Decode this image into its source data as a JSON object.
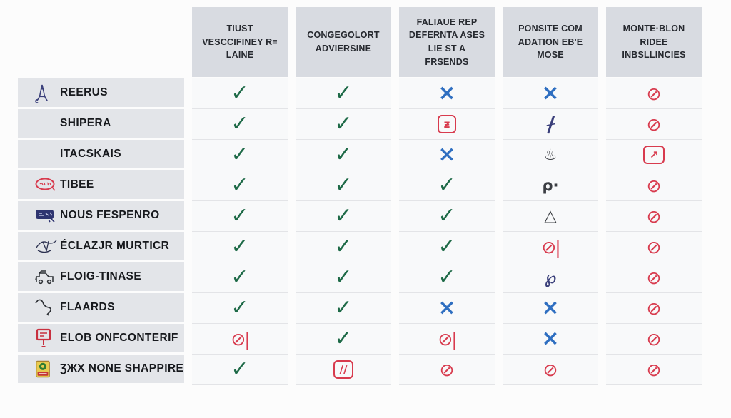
{
  "chart_data": {
    "type": "table",
    "title": "",
    "columns": [
      "TIUST VESCCIFINEY R≡ LAINE",
      "CONGEGOLORT ADVIERSINE",
      "FALIAUE REP DEFERNTA ASES LIE ST A FRSENDS",
      "PONSITE COM ADATION EB'E MOSE",
      "MONTE·BLON RIDEE INBSLLINCIES"
    ],
    "rows": [
      {
        "label": "REERUS",
        "icon": "eiffel-tower-icon",
        "cells": [
          "check",
          "check",
          "cross",
          "cross",
          "no"
        ]
      },
      {
        "label": "SHIPERA",
        "icon": null,
        "cells": [
          "check",
          "check",
          "boxed-z",
          "slash-crossed",
          "no"
        ]
      },
      {
        "label": "ITACSKAIS",
        "icon": null,
        "cells": [
          "check",
          "check",
          "cross",
          "scribble",
          "boxed-arrow"
        ]
      },
      {
        "label": "TIBEE",
        "icon": "red-badge-icon",
        "cells": [
          "check",
          "check",
          "check",
          "rho-dot",
          "no"
        ]
      },
      {
        "label": "NOUS FESPENRO",
        "icon": "navy-stamp-icon",
        "cells": [
          "check",
          "check",
          "check",
          "triangle",
          "no"
        ]
      },
      {
        "label": "ÉCLAZJR MURTICR",
        "icon": "ink-sketch-icon",
        "cells": [
          "check",
          "check",
          "check",
          "no-bar",
          "no"
        ]
      },
      {
        "label": "FLOIG-TINASE",
        "icon": "machine-sketch-icon",
        "cells": [
          "check",
          "check",
          "check",
          "loops",
          "no"
        ]
      },
      {
        "label": "FLAARDS",
        "icon": "hook-sketch-icon",
        "cells": [
          "check",
          "check",
          "cross",
          "cross",
          "no"
        ]
      },
      {
        "label": "ELOB ONFCONTERIF",
        "icon": "red-sign-icon",
        "cells": [
          "no-bar",
          "check",
          "no-bar",
          "cross",
          "no"
        ]
      },
      {
        "label": "ƷЖX NONE SHAPPIRE",
        "icon": "product-pack-icon",
        "cells": [
          "check",
          "boxed-slashes",
          "no",
          "no",
          "no"
        ]
      }
    ],
    "symbols": {
      "check": {
        "glyph": "✓",
        "color": "#1E6A47",
        "boxed": false
      },
      "cross": {
        "glyph": "×",
        "color": "#2F6FC1",
        "boxed": false
      },
      "no": {
        "glyph": "⊘",
        "color": "#D83B4E",
        "boxed": false
      },
      "no-bar": {
        "glyph": "⊘|",
        "color": "#D83B4E",
        "boxed": false
      },
      "boxed-z": {
        "glyph": "ƶ",
        "color": "#D83B4E",
        "boxed": true
      },
      "boxed-arrow": {
        "glyph": "↗",
        "color": "#D83B4E",
        "boxed": true
      },
      "boxed-slashes": {
        "glyph": "∕∕",
        "color": "#D83B4E",
        "boxed": true
      },
      "slash-crossed": {
        "glyph": "∤",
        "color": "#3A3F7A",
        "boxed": false
      },
      "scribble": {
        "glyph": "♨",
        "color": "#3A3D42",
        "boxed": false
      },
      "rho-dot": {
        "glyph": "ρ·",
        "color": "#3A3D42",
        "boxed": false
      },
      "triangle": {
        "glyph": "△",
        "color": "#3A3D42",
        "boxed": false
      },
      "loops": {
        "glyph": "℘",
        "color": "#3A3F7A",
        "boxed": false
      }
    },
    "colors": {
      "header_bg": "#d8dbe1",
      "label_bg": "#e3e5e9",
      "cell_bg": "#f8f9fa",
      "check_green": "#1E6A47",
      "cross_blue": "#2F6FC1",
      "prohibited_red": "#D83B4E"
    }
  }
}
